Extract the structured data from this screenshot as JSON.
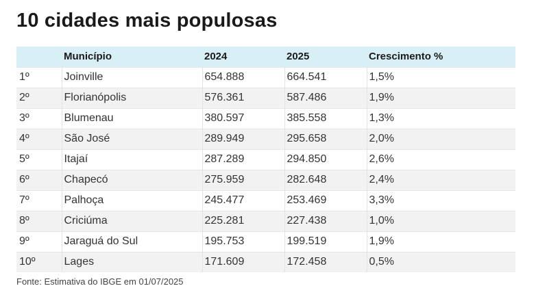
{
  "title": "10 cidades mais populosas",
  "table": {
    "headers": {
      "rank": "",
      "city": "Município",
      "y2024": "2024",
      "y2025": "2025",
      "growth": "Crescimento %"
    },
    "rows": [
      {
        "rank": "1º",
        "city": "Joinville",
        "y2024": "654.888",
        "y2025": "664.541",
        "growth": "1,5%"
      },
      {
        "rank": "2º",
        "city": "Florianópolis",
        "y2024": "576.361",
        "y2025": "587.486",
        "growth": "1,9%"
      },
      {
        "rank": "3º",
        "city": "Blumenau",
        "y2024": "380.597",
        "y2025": "385.558",
        "growth": "1,3%"
      },
      {
        "rank": "4º",
        "city": "São José",
        "y2024": "289.949",
        "y2025": "295.658",
        "growth": "2,0%"
      },
      {
        "rank": "5º",
        "city": "Itajaí",
        "y2024": "287.289",
        "y2025": "294.850",
        "growth": "2,6%"
      },
      {
        "rank": "6º",
        "city": "Chapecó",
        "y2024": "275.959",
        "y2025": "282.648",
        "growth": "2,4%"
      },
      {
        "rank": "7º",
        "city": "Palhoça",
        "y2024": "245.477",
        "y2025": "253.469",
        "growth": "3,3%"
      },
      {
        "rank": "8º",
        "city": "Criciúma",
        "y2024": "225.281",
        "y2025": "227.438",
        "growth": "1,0%"
      },
      {
        "rank": "9º",
        "city": "Jaraguá do Sul",
        "y2024": "195.753",
        "y2025": "199.519",
        "growth": "1,9%"
      },
      {
        "rank": "10º",
        "city": "Lages",
        "y2024": "171.609",
        "y2025": "172.458",
        "growth": "0,5%"
      }
    ]
  },
  "source": "Fonte: Estimativa do IBGE em 01/07/2025",
  "colors": {
    "header_bg": "#d8eff6",
    "stripe_bg": "#f2f2f2"
  }
}
